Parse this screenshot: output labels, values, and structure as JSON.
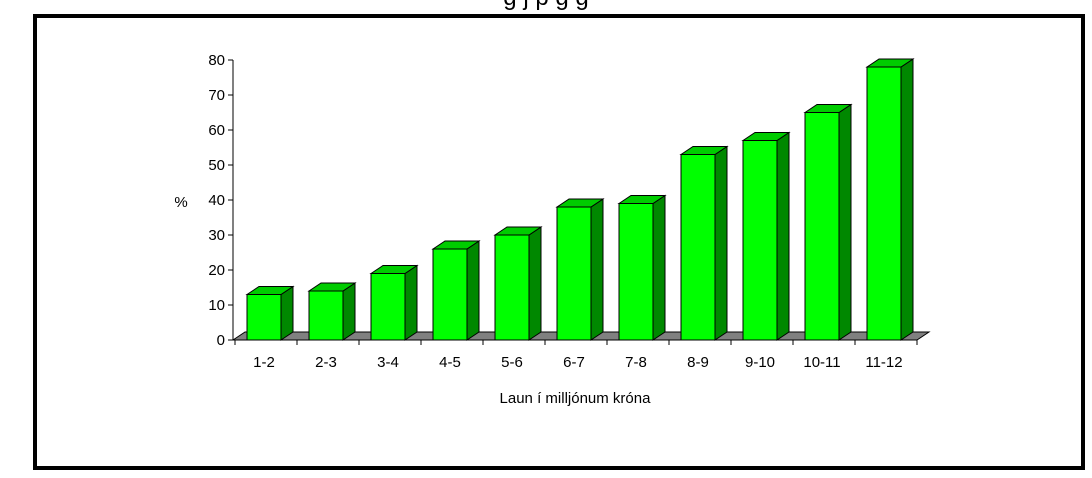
{
  "header": {
    "title_fragment": "g                 j   p                           g g"
  },
  "chart_data": {
    "type": "bar",
    "categories": [
      "1-2",
      "2-3",
      "3-4",
      "4-5",
      "5-6",
      "6-7",
      "7-8",
      "8-9",
      "9-10",
      "10-11",
      "11-12"
    ],
    "values": [
      13,
      14,
      19,
      26,
      30,
      38,
      39,
      53,
      57,
      65,
      78
    ],
    "xlabel": "Laun í milljónum króna",
    "ylabel": "%",
    "ylim": [
      0,
      80
    ],
    "yticks": [
      0,
      10,
      20,
      30,
      40,
      50,
      60,
      70,
      80
    ],
    "grid": false,
    "style": "3d-column",
    "colors": {
      "bar_front": "#00ff00",
      "bar_top": "#00cc00",
      "bar_side": "#008800",
      "floor": "#808080",
      "outline": "#000000"
    }
  }
}
